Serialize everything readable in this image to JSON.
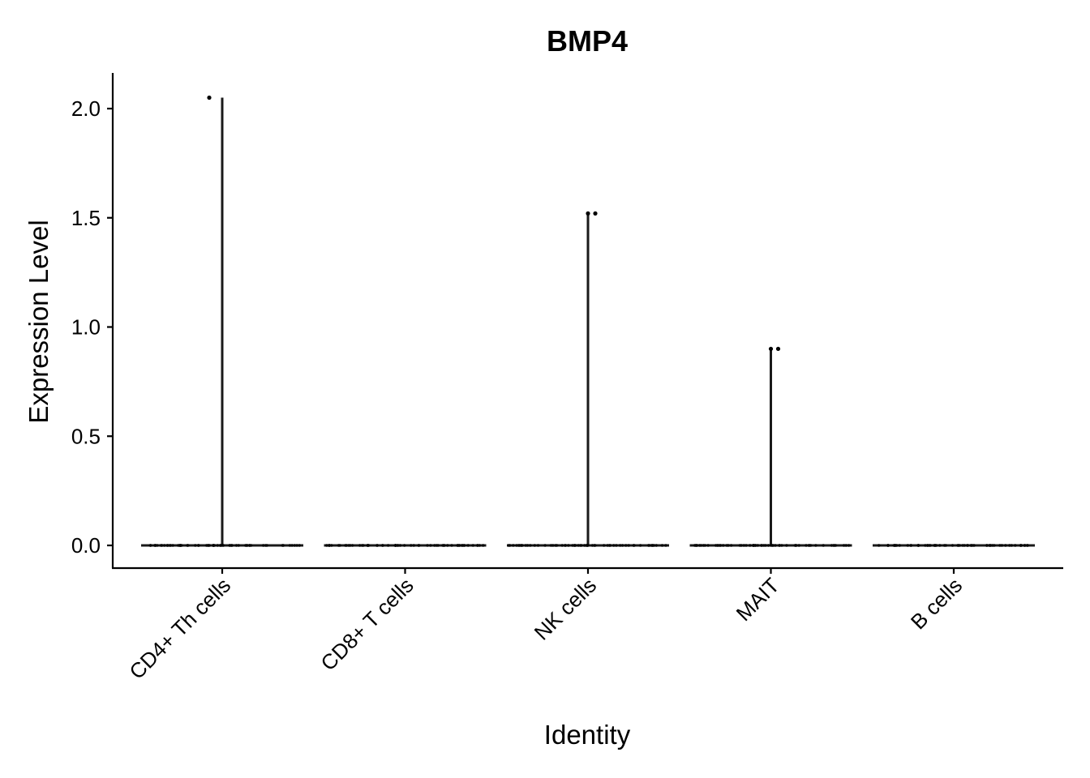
{
  "chart_data": {
    "type": "violin",
    "title": "BMP4",
    "xlabel": "Identity",
    "ylabel": "Expression Level",
    "categories": [
      "CD4+ Th cells",
      "CD8+ T cells",
      "NK cells",
      "MAIT",
      "B cells"
    ],
    "max_values": [
      2.05,
      0.0,
      1.52,
      0.9,
      0.0
    ],
    "outlier_points": [
      {
        "category": "CD4+ Th cells",
        "y": 2.05
      },
      {
        "category": "NK cells",
        "y": 1.52
      },
      {
        "category": "NK cells",
        "y": 1.52
      },
      {
        "category": "MAIT",
        "y": 0.9
      },
      {
        "category": "MAIT",
        "y": 0.9
      }
    ],
    "baseline_value": 0.0,
    "yticks": [
      "0.0",
      "0.5",
      "1.0",
      "1.5",
      "2.0"
    ],
    "ytick_values": [
      0.0,
      0.5,
      1.0,
      1.5,
      2.0
    ],
    "ylim": [
      -0.1,
      2.16
    ],
    "grid": false,
    "legend": "none",
    "colors": {
      "violin": "#1a1a1a",
      "points": "#000000",
      "axis": "#000000"
    }
  }
}
